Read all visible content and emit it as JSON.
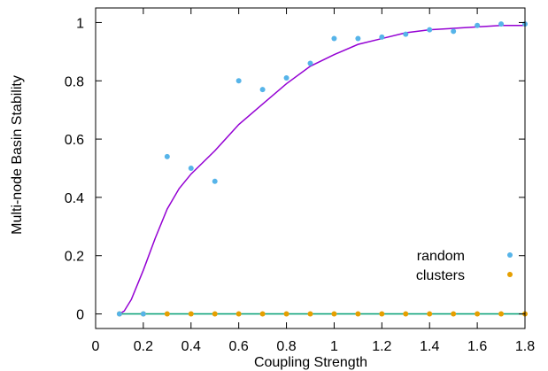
{
  "chart_data": {
    "type": "scatter",
    "xlabel": "Coupling Strength",
    "ylabel": "Multi-node Basin Stability",
    "xlim": [
      0,
      1.8
    ],
    "ylim": [
      -0.05,
      1.05
    ],
    "x_ticks": [
      0,
      0.2,
      0.4,
      0.6,
      0.8,
      1,
      1.2,
      1.4,
      1.6,
      1.8
    ],
    "x_tick_labels": [
      "0",
      "0.2",
      "0.4",
      "0.6",
      "0.8",
      "1",
      "1.2",
      "1.4",
      "1.6",
      "1.8"
    ],
    "y_ticks": [
      0,
      0.2,
      0.4,
      0.6,
      0.8,
      1
    ],
    "y_tick_labels": [
      "0",
      "0.2",
      "0.4",
      "0.6",
      "0.8",
      "1"
    ],
    "grid": false,
    "legend_position": "bottom-right",
    "series": [
      {
        "name": "random",
        "color": "#56b4e9",
        "kind": "points",
        "x": [
          0.1,
          0.2,
          0.3,
          0.4,
          0.5,
          0.6,
          0.7,
          0.8,
          0.9,
          1.0,
          1.1,
          1.2,
          1.3,
          1.4,
          1.5,
          1.6,
          1.7,
          1.8
        ],
        "y": [
          0,
          0,
          0.54,
          0.5,
          0.455,
          0.8,
          0.77,
          0.81,
          0.86,
          0.945,
          0.945,
          0.95,
          0.96,
          0.975,
          0.97,
          0.99,
          0.995,
          0.995
        ]
      },
      {
        "name": "clusters",
        "color": "#e69f00",
        "kind": "points",
        "x": [
          0.1,
          0.2,
          0.3,
          0.4,
          0.5,
          0.6,
          0.7,
          0.8,
          0.9,
          1.0,
          1.1,
          1.2,
          1.3,
          1.4,
          1.5,
          1.6,
          1.7,
          1.8
        ],
        "y": [
          0,
          0,
          0,
          0,
          0,
          0,
          0,
          0,
          0,
          0,
          0,
          0,
          0,
          0,
          0,
          0,
          0,
          0
        ]
      },
      {
        "color": "#9400d3",
        "kind": "line",
        "x": [
          0.1,
          0.12,
          0.15,
          0.2,
          0.25,
          0.3,
          0.35,
          0.4,
          0.5,
          0.6,
          0.7,
          0.8,
          0.9,
          1.0,
          1.1,
          1.2,
          1.3,
          1.4,
          1.5,
          1.6,
          1.7,
          1.8
        ],
        "y": [
          0,
          0.01,
          0.05,
          0.15,
          0.26,
          0.36,
          0.43,
          0.48,
          0.56,
          0.65,
          0.72,
          0.79,
          0.85,
          0.89,
          0.925,
          0.945,
          0.965,
          0.975,
          0.98,
          0.985,
          0.99,
          0.99
        ]
      },
      {
        "color": "#009e73",
        "kind": "line",
        "x": [
          0.1,
          1.8
        ],
        "y": [
          0,
          0
        ]
      }
    ]
  }
}
